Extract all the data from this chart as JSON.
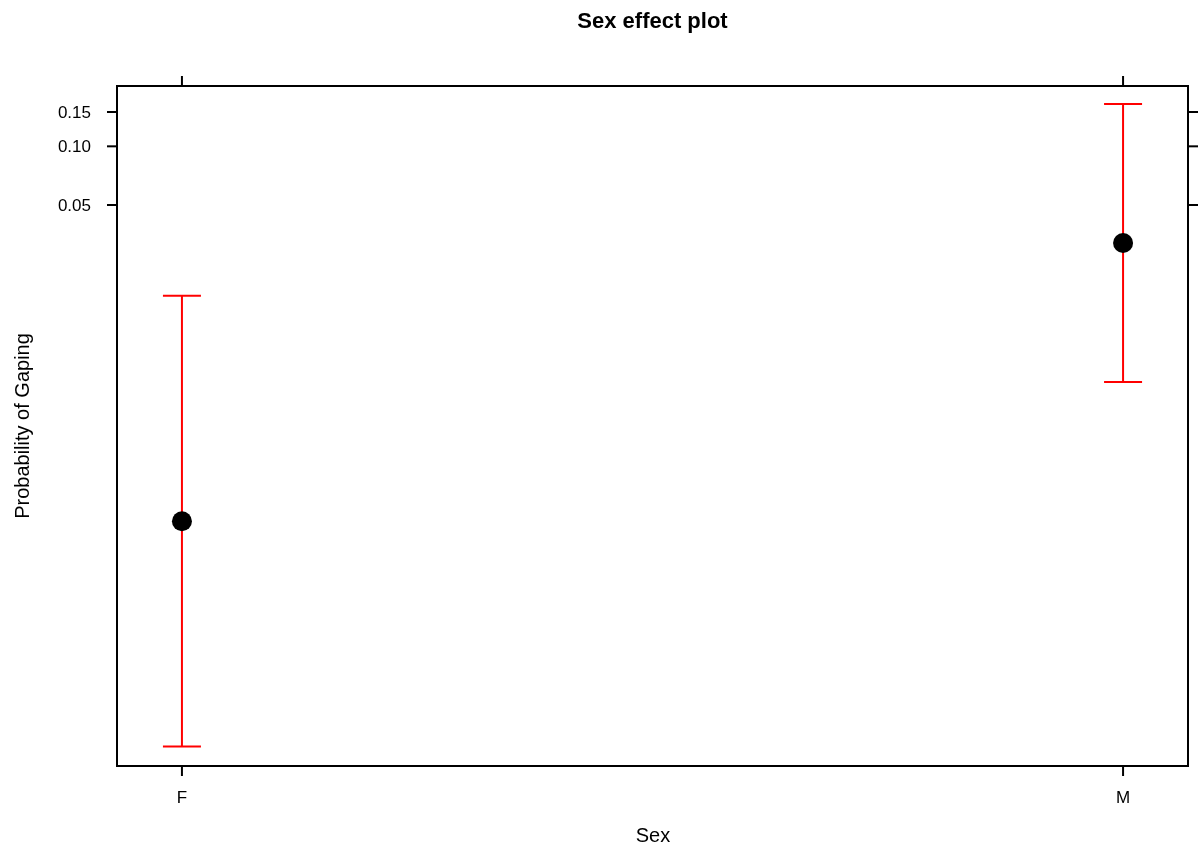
{
  "chart_data": {
    "type": "scatter",
    "title": "Sex effect plot",
    "xlabel": "Sex",
    "ylabel": "Probability of Gaping",
    "categories": [
      "F",
      "M"
    ],
    "log": true,
    "ylim": [
      6.6e-05,
      0.204
    ],
    "yticks": [
      {
        "value": 0.05,
        "label": "0.05"
      },
      {
        "value": 0.1,
        "label": "0.10"
      },
      {
        "value": 0.15,
        "label": "0.15"
      }
    ],
    "marker": "circle",
    "grid": false,
    "series": [
      {
        "color": "#000000",
        "values": [
          0.00119,
          0.0319
        ],
        "errors": [
          [
            8.3e-05,
            0.0171
          ],
          [
            0.00618,
            0.165
          ]
        ]
      }
    ]
  }
}
